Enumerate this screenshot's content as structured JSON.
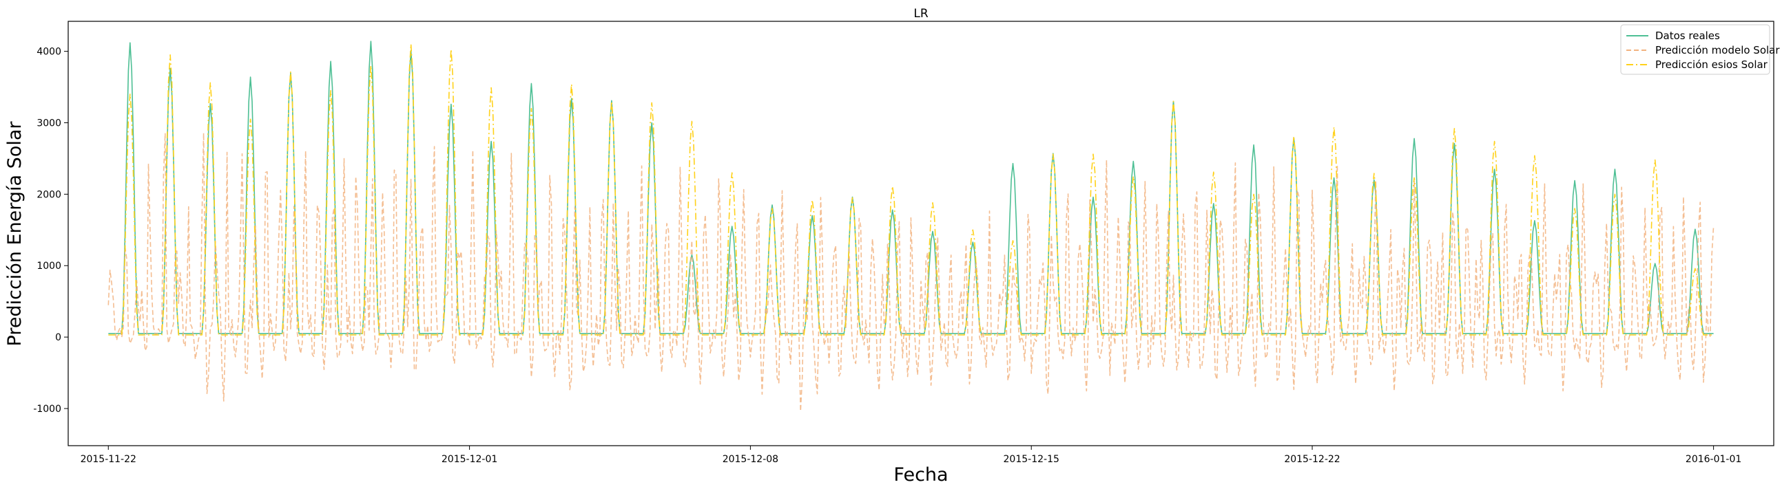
{
  "chart_data": {
    "type": "line",
    "title": "LR",
    "xlabel": "Fecha",
    "ylabel": "Predicción Energía Solar",
    "xlim": [
      "2015-11-21T00:00",
      "2016-01-02T12:00"
    ],
    "ylim": [
      -1520,
      4420
    ],
    "grid": false,
    "legend_position": "top-right",
    "x_ticks": [
      "2015-11-22",
      "2015-12-01",
      "2015-12-08",
      "2015-12-15",
      "2015-12-22",
      "2016-01-01"
    ],
    "y_ticks": [
      -1000,
      0,
      1000,
      2000,
      3000,
      4000
    ],
    "x_start": "2015-11-22T00:00",
    "x_end": "2016-01-01T00:00",
    "daily_peak_hour": 13,
    "series": [
      {
        "name": "Datos reales",
        "color": "#4dbf94",
        "style": "solid",
        "daily_peaks": [
          4120,
          3760,
          3270,
          3640,
          3700,
          3860,
          4140,
          4010,
          3260,
          2740,
          3550,
          3340,
          3310,
          3000,
          1150,
          1550,
          1850,
          1700,
          1960,
          1780,
          1480,
          1330,
          2430,
          2570,
          1960,
          2460,
          3300,
          1870,
          2690,
          2790,
          2230,
          2200,
          2780,
          2710,
          2350,
          1630,
          2190,
          2350,
          1030,
          1510
        ],
        "night_baseline": 50
      },
      {
        "name": "Predicción modelo Solar",
        "color": "#f2b27e",
        "style": "dashed",
        "daily_peaks": [
          1250,
          2900,
          2850,
          2800,
          2750,
          2720,
          2700,
          2680,
          2650,
          2600,
          2550,
          2500,
          2450,
          2450,
          2350,
          2300,
          2000,
          1900,
          1850,
          1800,
          1750,
          1700,
          1650,
          1950,
          2450,
          2300,
          2250,
          2400,
          2450,
          2400,
          2400,
          2150,
          2150,
          2100,
          2050,
          2100,
          2100,
          2050,
          2000,
          2200
        ],
        "daily_troughs": [
          -380,
          -300,
          -1100,
          -850,
          -550,
          -700,
          -500,
          -750,
          -550,
          -600,
          -750,
          -1050,
          -800,
          -700,
          -850,
          -850,
          -1000,
          -1250,
          -850,
          -1100,
          -950,
          -850,
          -800,
          -1000,
          -950,
          -900,
          -800,
          -950,
          -900,
          -950,
          -850,
          -850,
          -950,
          -1050,
          -900,
          -850,
          -950,
          -900,
          -550,
          -950
        ]
      },
      {
        "name": "Predicción esios Solar",
        "color": "#ffd11a",
        "style": "dashdot",
        "daily_peaks": [
          3400,
          3950,
          3560,
          3050,
          3720,
          3450,
          3800,
          4100,
          4030,
          3490,
          3200,
          3540,
          3300,
          3280,
          3020,
          2300,
          1800,
          1920,
          1950,
          2110,
          1880,
          1500,
          1350,
          2560,
          2560,
          2250,
          3300,
          2310,
          2000,
          2810,
          2940,
          2290,
          2230,
          2920,
          2740,
          2540,
          1800,
          2000,
          2480,
          960
        ],
        "night_baseline": 30
      }
    ]
  }
}
